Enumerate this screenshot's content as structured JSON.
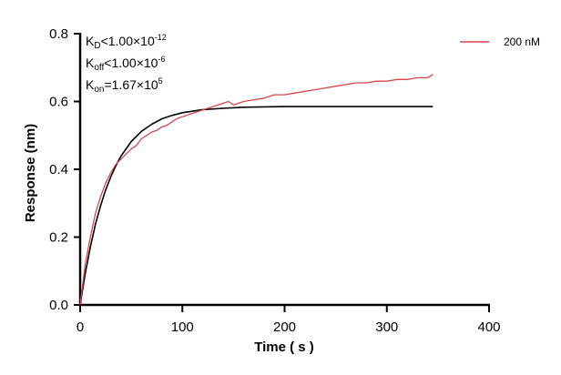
{
  "chart_data": {
    "type": "line",
    "xlabel": "Time ( s )",
    "ylabel": "Response (nm)",
    "xlim": [
      0,
      400
    ],
    "ylim": [
      0,
      0.8
    ],
    "xticks": [
      "0",
      "100",
      "200",
      "300",
      "400"
    ],
    "yticks": [
      "0.0",
      "0.2",
      "0.4",
      "0.6",
      "0.8"
    ],
    "grid": false,
    "legend_position": "top-right",
    "annotations": {
      "kd": {
        "base": "K",
        "sub": "D",
        "rel": "<1.00×10",
        "exp": "-12"
      },
      "koff": {
        "base": "K",
        "sub": "off",
        "rel": "<1.00×10",
        "exp": "-6"
      },
      "kon": {
        "base": "K",
        "sub": "on",
        "rel": "=1.67×10",
        "exp": "5"
      }
    },
    "series": [
      {
        "name": "200 nM",
        "color": "#d9464a",
        "x": [
          0,
          5,
          10,
          15,
          20,
          25,
          30,
          35,
          40,
          45,
          50,
          55,
          60,
          65,
          70,
          75,
          80,
          85,
          90,
          95,
          100,
          110,
          120,
          130,
          140,
          145,
          150,
          160,
          170,
          180,
          190,
          200,
          210,
          220,
          230,
          240,
          250,
          260,
          270,
          280,
          290,
          300,
          310,
          320,
          330,
          340,
          345
        ],
        "y": [
          0,
          0.12,
          0.2,
          0.27,
          0.32,
          0.36,
          0.39,
          0.415,
          0.43,
          0.445,
          0.46,
          0.47,
          0.49,
          0.5,
          0.51,
          0.515,
          0.525,
          0.53,
          0.54,
          0.55,
          0.555,
          0.565,
          0.575,
          0.585,
          0.595,
          0.6,
          0.59,
          0.6,
          0.605,
          0.61,
          0.62,
          0.62,
          0.625,
          0.63,
          0.635,
          0.64,
          0.645,
          0.65,
          0.655,
          0.655,
          0.66,
          0.66,
          0.665,
          0.665,
          0.67,
          0.67,
          0.68
        ]
      },
      {
        "role": "fit",
        "color": "#000000",
        "x": [
          0,
          5,
          10,
          15,
          20,
          25,
          30,
          35,
          40,
          50,
          60,
          70,
          80,
          90,
          100,
          120,
          140,
          160,
          200,
          345
        ],
        "y": [
          0,
          0.093,
          0.171,
          0.238,
          0.293,
          0.34,
          0.378,
          0.411,
          0.439,
          0.482,
          0.512,
          0.533,
          0.549,
          0.559,
          0.567,
          0.576,
          0.58,
          0.583,
          0.585,
          0.585
        ]
      }
    ]
  }
}
